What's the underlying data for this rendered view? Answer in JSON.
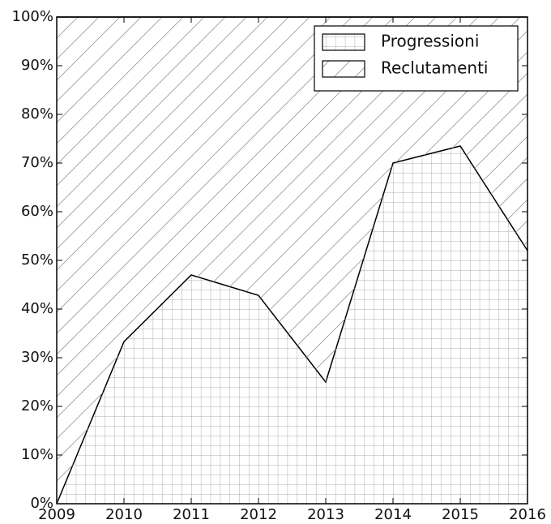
{
  "chart_data": {
    "type": "stacked_area",
    "x": [
      2009,
      2010,
      2011,
      2012,
      2013,
      2014,
      2015,
      2016
    ],
    "series": [
      {
        "name": "Progressioni",
        "color": "#999999",
        "hatch": "grid",
        "values": [
          0,
          33.3,
          47,
          42.8,
          25,
          70,
          73.5,
          52
        ]
      },
      {
        "name": "Reclutamenti",
        "color": "#999999",
        "hatch": "diagonal",
        "values": [
          100,
          66.7,
          53,
          57.2,
          75,
          30,
          26.5,
          48
        ]
      }
    ],
    "xlim": [
      2009,
      2016
    ],
    "xticks": [
      2009,
      2010,
      2011,
      2012,
      2013,
      2014,
      2015,
      2016
    ],
    "ylim": [
      0,
      100
    ],
    "yticks": [
      {
        "value": 0,
        "label": "0%"
      },
      {
        "value": 10,
        "label": "10%"
      },
      {
        "value": 20,
        "label": "20%"
      },
      {
        "value": 30,
        "label": "30%"
      },
      {
        "value": 40,
        "label": "40%"
      },
      {
        "value": 50,
        "label": "50%"
      },
      {
        "value": 60,
        "label": "60%"
      },
      {
        "value": 70,
        "label": "70%"
      },
      {
        "value": 80,
        "label": "80%"
      },
      {
        "value": 90,
        "label": "90%"
      },
      {
        "value": 100,
        "label": "100%"
      }
    ],
    "legend": "upper right"
  }
}
